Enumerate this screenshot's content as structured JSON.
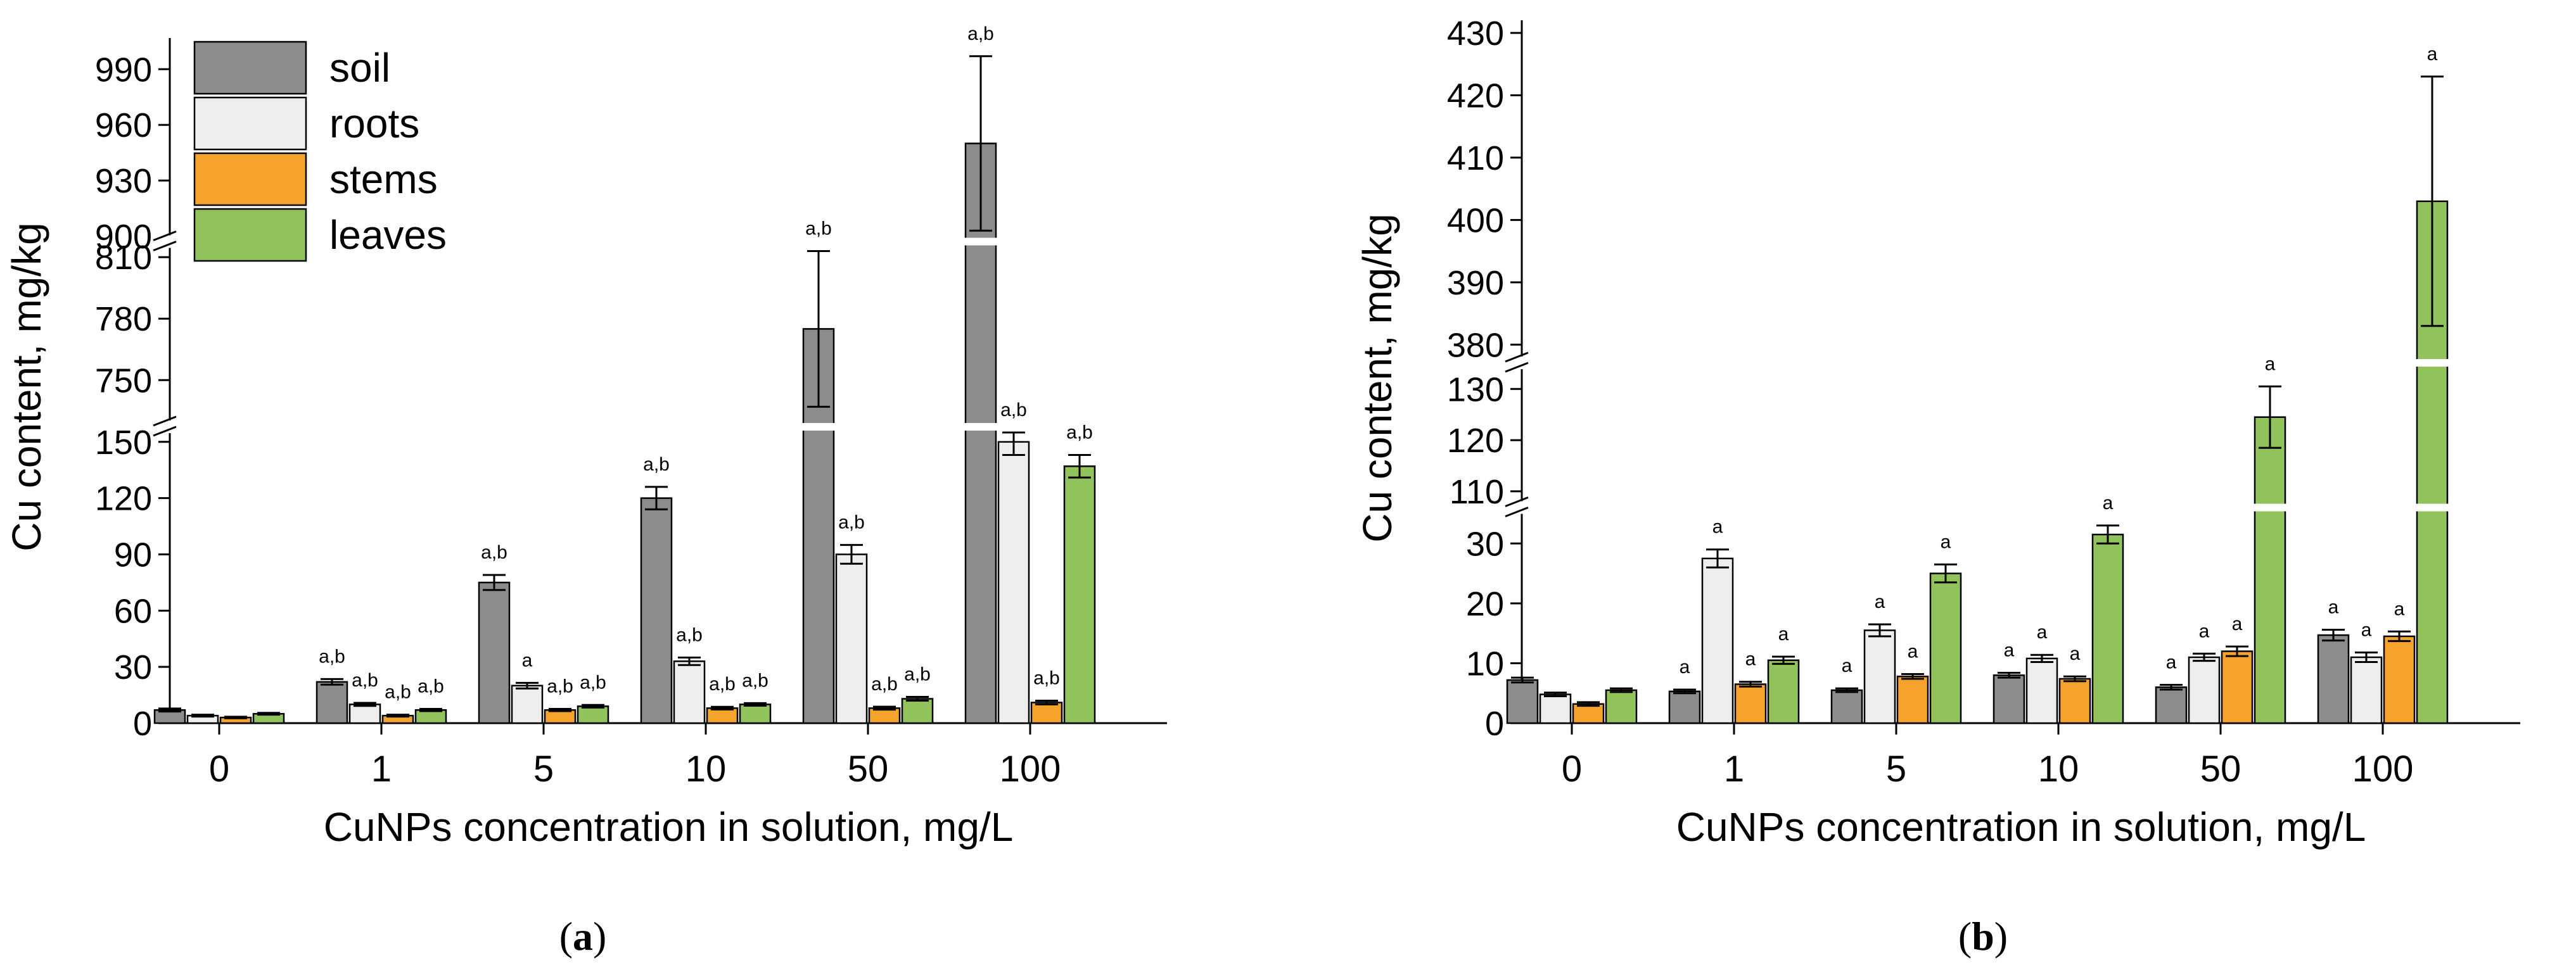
{
  "chart_data": [
    {
      "panel": "(a)",
      "panel_letter": "a",
      "type": "bar",
      "xlabel": "CuNPs concentration in solution, mg/L",
      "ylabel": "Cu content, mg/kg",
      "categories": [
        "0",
        "1",
        "5",
        "10",
        "50",
        "100"
      ],
      "y_segments": [
        {
          "range": [
            0,
            155
          ],
          "ticks": [
            0,
            30,
            60,
            90,
            120,
            150
          ]
        },
        {
          "range": [
            730,
            815
          ],
          "ticks": [
            750,
            780,
            810
          ]
        },
        {
          "range": [
            900,
            1000
          ],
          "ticks": [
            900,
            930,
            960,
            990
          ]
        }
      ],
      "legend": {
        "position": "top-left",
        "entries": [
          "soil",
          "roots",
          "stems",
          "leaves"
        ]
      },
      "series": [
        {
          "name": "soil",
          "color": "#8c8c8c",
          "values": [
            7,
            22,
            75,
            120,
            775,
            950
          ],
          "errors": [
            0.8,
            1.5,
            4,
            6,
            38,
            47
          ],
          "labels": [
            "",
            "a,b",
            "a,b",
            "a,b",
            "a,b",
            "a,b"
          ]
        },
        {
          "name": "roots",
          "color": "#eeeeee",
          "values": [
            4,
            10,
            20,
            33,
            90,
            150
          ],
          "errors": [
            0.5,
            0.8,
            1.5,
            2,
            5,
            7
          ],
          "labels": [
            "",
            "a,b",
            "a",
            "a,b",
            "a,b",
            "a,b"
          ]
        },
        {
          "name": "stems",
          "color": "#f5a32d",
          "values": [
            3,
            4,
            7,
            8,
            8,
            11
          ],
          "errors": [
            0.4,
            0.5,
            0.6,
            0.7,
            0.8,
            1
          ],
          "labels": [
            "",
            "a,b",
            "a,b",
            "a,b",
            "a,b",
            "a,b"
          ]
        },
        {
          "name": "leaves",
          "color": "#92c25c",
          "values": [
            5,
            7,
            9,
            10,
            13,
            137
          ],
          "errors": [
            0.5,
            0.6,
            0.7,
            0.7,
            1,
            6
          ],
          "labels": [
            "",
            "a,b",
            "a,b",
            "a,b",
            "a,b",
            "a,b"
          ]
        }
      ]
    },
    {
      "panel": "(b)",
      "panel_letter": "b",
      "type": "bar",
      "xlabel": "CuNPs concentration in solution, mg/L",
      "ylabel": "Cu content, mg/kg",
      "categories": [
        "0",
        "1",
        "5",
        "10",
        "50",
        "100"
      ],
      "y_segments": [
        {
          "range": [
            0,
            35
          ],
          "ticks": [
            0,
            10,
            20,
            30
          ]
        },
        {
          "range": [
            108,
            134
          ],
          "ticks": [
            110,
            120,
            130
          ]
        },
        {
          "range": [
            378,
            430
          ],
          "ticks": [
            380,
            390,
            400,
            410,
            420,
            430
          ]
        }
      ],
      "series": [
        {
          "name": "soil",
          "color": "#8c8c8c",
          "values": [
            7.2,
            5.3,
            5.5,
            8,
            6,
            14.7
          ],
          "errors": [
            0.4,
            0.3,
            0.3,
            0.4,
            0.4,
            0.9
          ],
          "labels": [
            "",
            "a",
            "a",
            "a",
            "a",
            "a"
          ]
        },
        {
          "name": "roots",
          "color": "#eeeeee",
          "values": [
            4.8,
            27.5,
            15.5,
            10.8,
            11,
            11
          ],
          "errors": [
            0.3,
            1.5,
            1,
            0.6,
            0.6,
            0.8
          ],
          "labels": [
            "",
            "a",
            "a",
            "a",
            "a",
            "a"
          ]
        },
        {
          "name": "stems",
          "color": "#f5a32d",
          "values": [
            3.2,
            6.5,
            7.8,
            7.4,
            12,
            14.5
          ],
          "errors": [
            0.3,
            0.4,
            0.4,
            0.4,
            0.8,
            0.8
          ],
          "labels": [
            "",
            "a",
            "a",
            "a",
            "a",
            "a"
          ]
        },
        {
          "name": "leaves",
          "color": "#92c25c",
          "values": [
            5.5,
            10.5,
            25,
            31.5,
            124.5,
            403
          ],
          "errors": [
            0.3,
            0.6,
            1.5,
            1.5,
            6,
            20
          ],
          "labels": [
            "",
            "a",
            "a",
            "a",
            "a",
            "a"
          ]
        }
      ]
    }
  ]
}
